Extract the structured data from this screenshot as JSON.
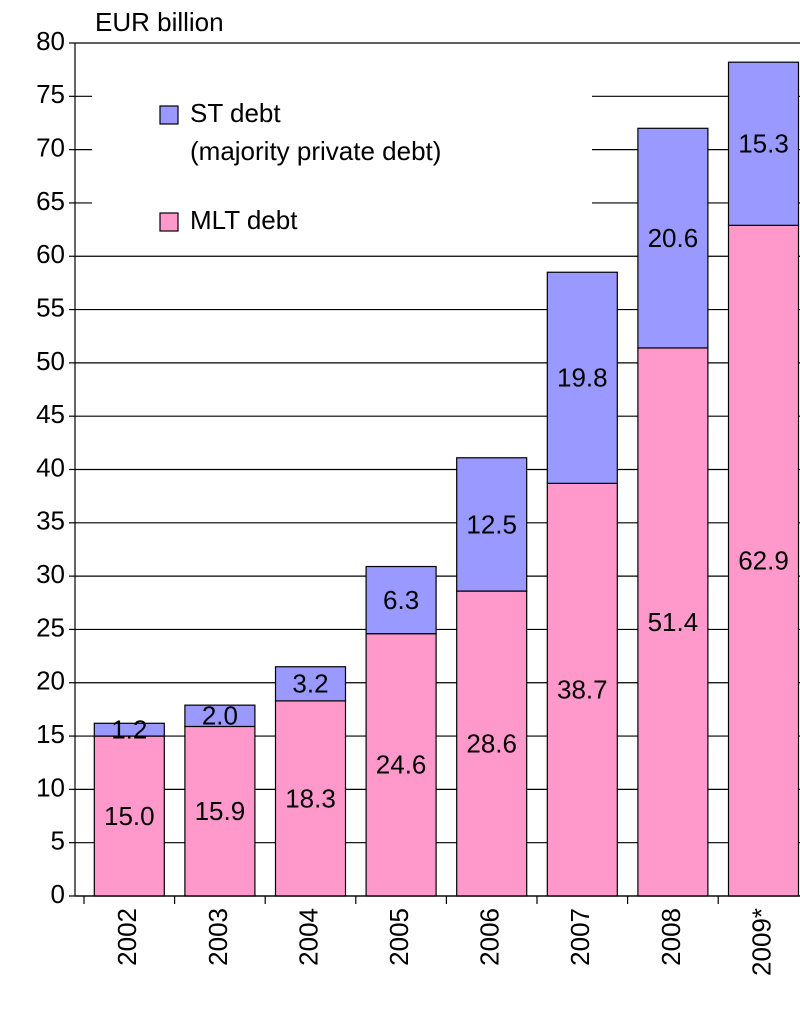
{
  "chart_data": {
    "type": "stacked-bar",
    "title": "EUR billion",
    "categories": [
      "2002",
      "2003",
      "2004",
      "2005",
      "2006",
      "2007",
      "2008",
      "2009*"
    ],
    "series": [
      {
        "name": "MLT debt",
        "color": "#ff99cc",
        "values": [
          15.0,
          15.9,
          18.3,
          24.6,
          28.6,
          38.7,
          51.4,
          62.9
        ],
        "value_labels": [
          "15.0",
          "15.9",
          "18.3",
          "24.6",
          "28.6",
          "38.7",
          "51.4",
          "62.9"
        ]
      },
      {
        "name": "ST debt\n(majority private debt)",
        "color": "#9999ff",
        "values": [
          1.2,
          2.0,
          3.2,
          6.3,
          12.5,
          19.8,
          20.6,
          15.3
        ],
        "value_labels": [
          "1.2",
          "2.0",
          "3.2",
          "6.3",
          "12.5",
          "19.8",
          "20.6",
          "15.3"
        ]
      }
    ],
    "ylim": [
      0,
      80
    ],
    "yticks": [
      0,
      5,
      10,
      15,
      20,
      25,
      30,
      35,
      40,
      45,
      50,
      55,
      60,
      65,
      70,
      75,
      80
    ],
    "grid": true
  }
}
